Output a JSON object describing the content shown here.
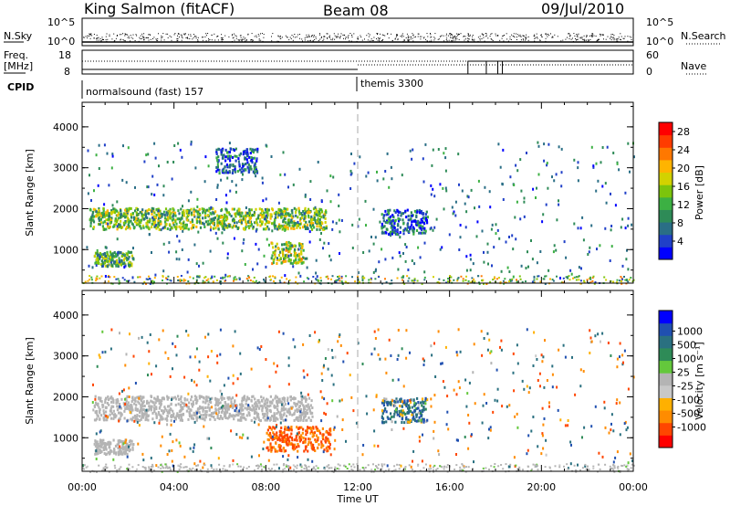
{
  "header": {
    "station": "King Salmon (fitACF)",
    "beam": "Beam 08",
    "date": "09/Jul/2010"
  },
  "noise_panel": {
    "left_label": "N.Sky",
    "right_label": "N.Search",
    "left_ticks": [
      "10^5",
      "10^0"
    ],
    "right_ticks": [
      "10^5",
      "10^0"
    ]
  },
  "freq_panel": {
    "left_label_1": "Freq.",
    "left_label_2": "[MHz]",
    "left_ticks": [
      "18",
      "8"
    ],
    "right_label": "Nave",
    "right_ticks": [
      "60",
      "0"
    ]
  },
  "cpid_panel": {
    "label": "CPID",
    "programs": [
      {
        "name": "normalsound (fast) 157",
        "start_hour": 0
      },
      {
        "name": "themis 3300",
        "start_hour": 12
      }
    ]
  },
  "chart_data": [
    {
      "type": "heatmap",
      "name": "power",
      "ylabel": "Slant Range [km]",
      "xlabel": "",
      "x_range_hours": [
        0,
        24
      ],
      "ylim": [
        180,
        4600
      ],
      "yticks": [
        "1000",
        "2000",
        "3000",
        "4000"
      ],
      "colorbar": {
        "label": "Power [dB]",
        "ticks": [
          "4",
          "8",
          "12",
          "16",
          "20",
          "24",
          "28"
        ],
        "range": [
          0,
          30
        ],
        "colors": [
          "#0000ff",
          "#2040c8",
          "#2a6e86",
          "#2e8b57",
          "#3cb043",
          "#7cc40c",
          "#d2d200",
          "#ffb400",
          "#ff7800",
          "#ff3c00",
          "#ff0000"
        ]
      },
      "regions": [
        {
          "t0": 0.3,
          "t1": 10.6,
          "r_center": 1780,
          "r_width": 260,
          "value": 14
        },
        {
          "t0": 0.5,
          "t1": 2.2,
          "r_center": 800,
          "r_width": 180,
          "value": 12
        },
        {
          "t0": 8.2,
          "t1": 9.6,
          "r_center": 950,
          "r_width": 260,
          "value": 16
        },
        {
          "t0": 5.8,
          "t1": 7.6,
          "r_center": 3200,
          "r_width": 300,
          "value": 6
        },
        {
          "t0": 13.0,
          "t1": 15.0,
          "r_center": 1700,
          "r_width": 300,
          "value": 6
        }
      ]
    },
    {
      "type": "heatmap",
      "name": "velocity",
      "ylabel": "Slant Range [km]",
      "xlabel": "Time UT",
      "x_range_hours": [
        0,
        24
      ],
      "ylim": [
        180,
        4600
      ],
      "yticks": [
        "1000",
        "2000",
        "3000",
        "4000"
      ],
      "xticks": [
        "00:00",
        "04:00",
        "08:00",
        "12:00",
        "16:00",
        "20:00",
        "00:00"
      ],
      "colorbar": {
        "label": "Velocity [m s⁻¹]",
        "ticks": [
          "-1000",
          "-500",
          "-100",
          "-25",
          "25",
          "100",
          "500",
          "1000"
        ],
        "colors": [
          "#ff0000",
          "#ff4600",
          "#ff8c00",
          "#ffb000",
          "#c8c8c8",
          "#b4b4b4",
          "#64c83c",
          "#2e8b57",
          "#2a7080",
          "#2050b0",
          "#0000ff"
        ]
      },
      "regions": [
        {
          "t0": 0.5,
          "t1": 10.0,
          "r_center": 1750,
          "r_width": 300,
          "value": 0
        },
        {
          "t0": 0.5,
          "t1": 2.2,
          "r_center": 800,
          "r_width": 180,
          "value": 0
        },
        {
          "t0": 8.0,
          "t1": 10.8,
          "r_center": 1000,
          "r_width": 300,
          "value": -600
        },
        {
          "t0": 13.0,
          "t1": 15.0,
          "r_center": 1700,
          "r_width": 300,
          "value": 300
        }
      ]
    }
  ]
}
